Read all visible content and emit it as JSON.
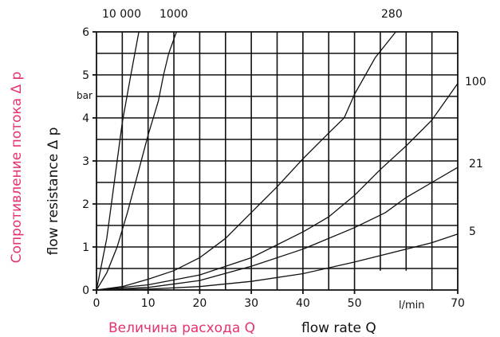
{
  "chart_data": {
    "type": "line",
    "x_axis": {
      "label_ru": "Величина расхода Q",
      "label_en": "flow rate Q",
      "unit": "l/min",
      "range": [
        0,
        70
      ],
      "ticks": [
        0,
        10,
        20,
        30,
        40,
        50,
        70
      ]
    },
    "y_axis": {
      "label_ru": "Сопротивление потока Δ p",
      "label_en": "flow resistance Δ p",
      "unit": "bar",
      "range": [
        0,
        6
      ],
      "ticks": [
        0,
        1,
        2,
        3,
        4,
        5,
        6
      ]
    },
    "grid": true,
    "series": [
      {
        "name": "10 000",
        "points": [
          [
            0,
            0
          ],
          [
            2,
            1.2
          ],
          [
            4,
            3.0
          ],
          [
            5,
            3.9
          ],
          [
            6.5,
            4.9
          ],
          [
            8.2,
            6.0
          ]
        ]
      },
      {
        "name": "1000",
        "points": [
          [
            0,
            0
          ],
          [
            2,
            0.4
          ],
          [
            4,
            1.0
          ],
          [
            6,
            1.8
          ],
          [
            8,
            2.7
          ],
          [
            10,
            3.6
          ],
          [
            12,
            4.4
          ],
          [
            13,
            5.0
          ],
          [
            14,
            5.5
          ],
          [
            15.5,
            6.0
          ]
        ]
      },
      {
        "name": "280",
        "points": [
          [
            0,
            0
          ],
          [
            5,
            0.08
          ],
          [
            10,
            0.25
          ],
          [
            15,
            0.45
          ],
          [
            20,
            0.75
          ],
          [
            25,
            1.2
          ],
          [
            30,
            1.8
          ],
          [
            35,
            2.4
          ],
          [
            40,
            3.05
          ],
          [
            45,
            3.65
          ],
          [
            48,
            4.0
          ],
          [
            50,
            4.55
          ],
          [
            54,
            5.4
          ],
          [
            58,
            6.0
          ]
        ]
      },
      {
        "name": "100",
        "points": [
          [
            0,
            0
          ],
          [
            10,
            0.12
          ],
          [
            20,
            0.35
          ],
          [
            30,
            0.75
          ],
          [
            40,
            1.35
          ],
          [
            45,
            1.7
          ],
          [
            50,
            2.2
          ],
          [
            55,
            2.8
          ],
          [
            60,
            3.35
          ],
          [
            65,
            3.95
          ],
          [
            70,
            4.8
          ]
        ]
      },
      {
        "name": "21",
        "points": [
          [
            0,
            0
          ],
          [
            10,
            0.06
          ],
          [
            20,
            0.22
          ],
          [
            30,
            0.55
          ],
          [
            40,
            0.95
          ],
          [
            50,
            1.45
          ],
          [
            56,
            1.8
          ],
          [
            60,
            2.15
          ],
          [
            65,
            2.5
          ],
          [
            70,
            2.85
          ]
        ]
      },
      {
        "name": "5",
        "points": [
          [
            0,
            0
          ],
          [
            10,
            0.02
          ],
          [
            20,
            0.08
          ],
          [
            30,
            0.2
          ],
          [
            40,
            0.38
          ],
          [
            50,
            0.65
          ],
          [
            60,
            0.95
          ],
          [
            65,
            1.1
          ],
          [
            70,
            1.3
          ]
        ]
      }
    ]
  }
}
